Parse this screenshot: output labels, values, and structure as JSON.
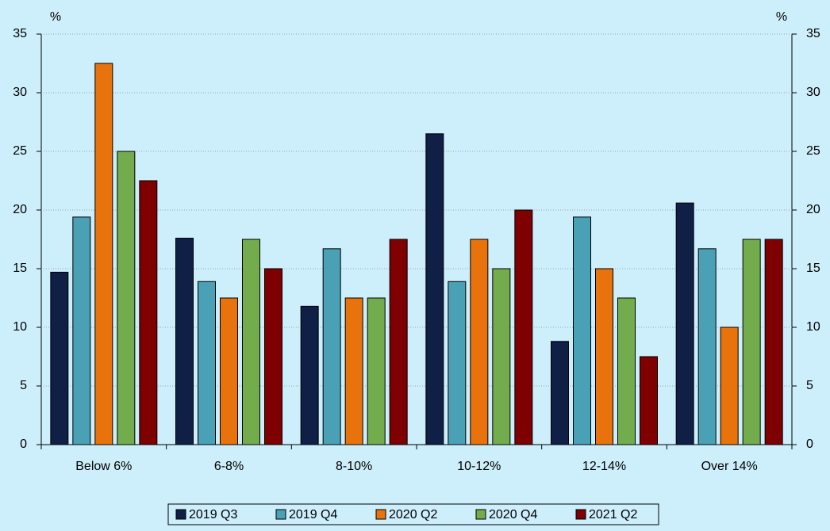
{
  "chart_data": {
    "type": "bar",
    "y_unit": "%",
    "y2_unit": "%",
    "categories": [
      "Below 6%",
      "6-8%",
      "8-10%",
      "10-12%",
      "12-14%",
      "Over 14%"
    ],
    "series": [
      {
        "name": "2019 Q3",
        "color": "#0f1f45",
        "values": [
          14.7,
          17.6,
          11.8,
          26.5,
          8.8,
          20.6
        ]
      },
      {
        "name": "2019 Q4",
        "color": "#4aa0b5",
        "values": [
          19.4,
          13.9,
          16.7,
          13.9,
          19.4,
          16.7
        ]
      },
      {
        "name": "2020 Q2",
        "color": "#e8720c",
        "values": [
          32.5,
          12.5,
          12.5,
          17.5,
          15,
          10
        ]
      },
      {
        "name": "2020 Q4",
        "color": "#72ac4d",
        "values": [
          25,
          17.5,
          12.5,
          15,
          12.5,
          17.5
        ]
      },
      {
        "name": "2021 Q2",
        "color": "#7f0000",
        "values": [
          22.5,
          15,
          17.5,
          20,
          7.5,
          17.5
        ]
      }
    ],
    "ylim": [
      0,
      35
    ],
    "yticks": [
      0,
      5,
      10,
      15,
      20,
      25,
      30,
      35
    ],
    "y2lim": [
      0,
      35
    ],
    "y2ticks": [
      0,
      5,
      10,
      15,
      20,
      25,
      30,
      35
    ],
    "grid": true,
    "legend": "bottom"
  }
}
